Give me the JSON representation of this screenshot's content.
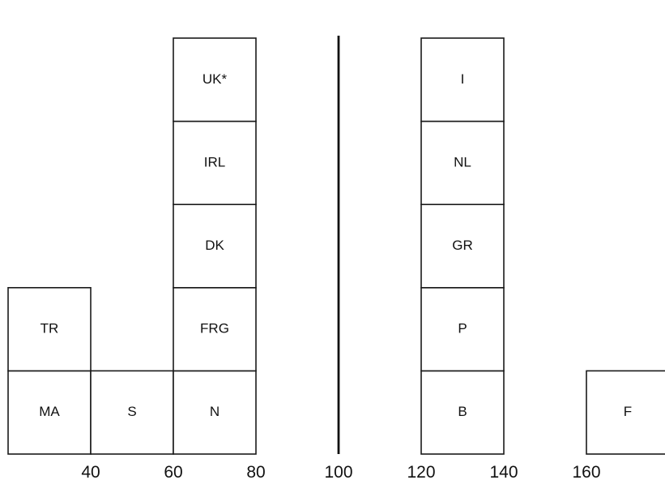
{
  "chart_data": {
    "type": "bar",
    "subtype": "stacked-unit-histogram",
    "title": "",
    "xlabel": "",
    "ylabel": "",
    "xlim": [
      20,
      180
    ],
    "bin_width": 20,
    "reference_line_x": 100,
    "x_ticks": [
      "40",
      "60",
      "80",
      "100",
      "120",
      "140",
      "160"
    ],
    "bins": [
      {
        "x_start": 20,
        "x_end": 40,
        "count": 2,
        "labels": [
          "MA",
          "TR"
        ]
      },
      {
        "x_start": 40,
        "x_end": 60,
        "count": 1,
        "labels": [
          "S"
        ]
      },
      {
        "x_start": 60,
        "x_end": 80,
        "count": 5,
        "labels": [
          "N",
          "FRG",
          "DK",
          "IRL",
          "UK*"
        ]
      },
      {
        "x_start": 120,
        "x_end": 140,
        "count": 5,
        "labels": [
          "B",
          "P",
          "GR",
          "NL",
          "I"
        ]
      },
      {
        "x_start": 160,
        "x_end": 180,
        "count": 1,
        "labels": [
          "F"
        ]
      }
    ],
    "grid": false,
    "legend": "none"
  },
  "colors": {
    "line": "#1a1a1a",
    "fill": "#ffffff",
    "text": "#111111"
  }
}
